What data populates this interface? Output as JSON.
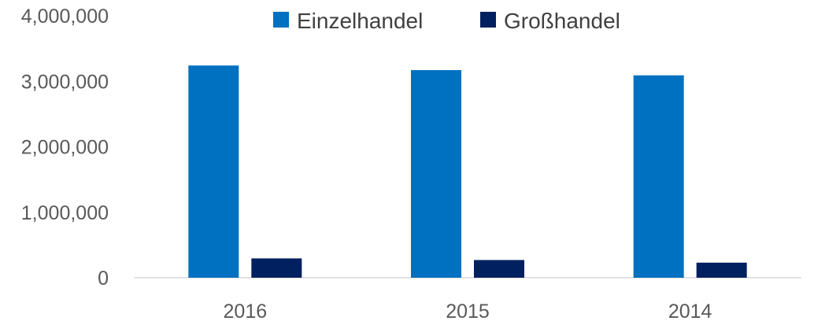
{
  "chart_data": {
    "type": "bar",
    "categories": [
      "2016",
      "2015",
      "2014"
    ],
    "series": [
      {
        "name": "Einzelhandel",
        "color": "#0070C0",
        "values": [
          3240000,
          3170000,
          3090000
        ]
      },
      {
        "name": "Großhandel",
        "color": "#002060",
        "values": [
          295000,
          270000,
          230000
        ]
      }
    ],
    "ylim": [
      0,
      4000000
    ],
    "yticks": [
      0,
      1000000,
      2000000,
      3000000,
      4000000
    ],
    "ytick_labels": [
      "0",
      "1,000,000",
      "2,000,000",
      "3,000,000",
      "4,000,000"
    ],
    "grid": false,
    "legend_position": "top"
  }
}
